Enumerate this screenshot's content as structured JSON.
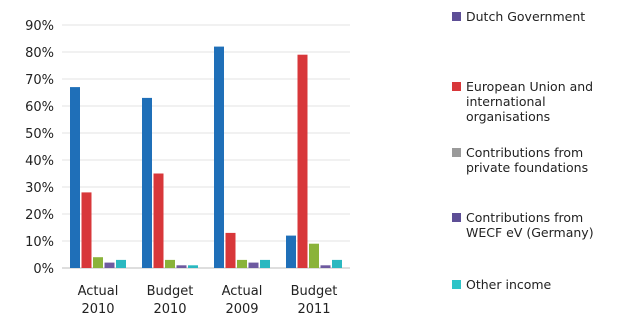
{
  "chart_data": {
    "type": "bar",
    "categories": [
      "Actual\n2010",
      "Budget\n2010",
      "Actual\n2009",
      "Budget\n2011"
    ],
    "ylim": [
      0,
      90
    ],
    "yticks": [
      "0%",
      "10%",
      "20%",
      "30%",
      "40%",
      "50%",
      "60%",
      "70%",
      "80%",
      "90%"
    ],
    "grid": true,
    "legend_position": "right",
    "series": [
      {
        "name": "Dutch Government",
        "color": "#1f6fb8",
        "values": [
          67,
          63,
          82,
          12
        ]
      },
      {
        "name": "European Union and\ninternational\norganisations",
        "color": "#d8373a",
        "values": [
          28,
          35,
          13,
          79
        ]
      },
      {
        "name": "Contributions from\nprivate foundations",
        "color": "#8ab33a",
        "values": [
          4,
          3,
          3,
          9
        ]
      },
      {
        "name": "Contributions from\nWECF eV (Germany)",
        "color": "#6e5aa0",
        "values": [
          2,
          1,
          2,
          1
        ]
      },
      {
        "name": "Other income",
        "color": "#2ab8c0",
        "values": [
          3,
          1,
          3,
          3
        ]
      }
    ],
    "legend_swatch_colors": [
      "#5d4e96",
      "#d8373a",
      "#9a9a9a",
      "#5d4e96",
      "#2ec4c8"
    ]
  }
}
